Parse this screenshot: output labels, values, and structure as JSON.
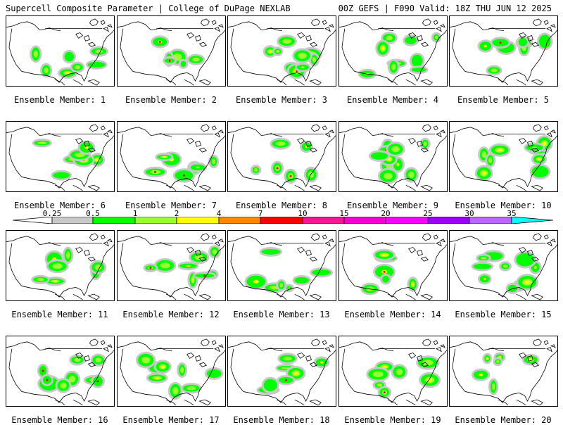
{
  "header": {
    "left": "Supercell Composite Parameter | College of DuPage NEXLAB",
    "right": "00Z GEFS | F090 Valid: 18Z THU JUN 12 2025"
  },
  "legend": {
    "ticks": [
      "0.25",
      "0.5",
      "1",
      "2",
      "4",
      "7",
      "10",
      "15",
      "20",
      "25",
      "30",
      "35"
    ],
    "colors": [
      "#c8c8c8",
      "#00ff00",
      "#99ff33",
      "#ffff00",
      "#ff8800",
      "#ff0000",
      "#ff1493",
      "#ff00cc",
      "#ff00ff",
      "#9900ff",
      "#bb66ff",
      "#00ffff"
    ]
  },
  "panels": [
    {
      "label": "Ensemble Member: 1"
    },
    {
      "label": "Ensemble Member: 2"
    },
    {
      "label": "Ensemble Member: 3"
    },
    {
      "label": "Ensemble Member: 4"
    },
    {
      "label": "Ensemble Member: 5"
    },
    {
      "label": "Ensemble Member: 6"
    },
    {
      "label": "Ensemble Member: 7"
    },
    {
      "label": "Ensemble Member: 8"
    },
    {
      "label": "Ensemble Member: 9"
    },
    {
      "label": "Ensemble Member: 10"
    },
    {
      "label": "Ensemble Member: 11"
    },
    {
      "label": "Ensemble Member: 12"
    },
    {
      "label": "Ensemble Member: 13"
    },
    {
      "label": "Ensemble Member: 14"
    },
    {
      "label": "Ensemble Member: 15"
    },
    {
      "label": "Ensemble Member: 16"
    },
    {
      "label": "Ensemble Member: 17"
    },
    {
      "label": "Ensemble Member: 18"
    },
    {
      "label": "Ensemble Member: 19"
    },
    {
      "label": "Ensemble Member: 20"
    }
  ]
}
